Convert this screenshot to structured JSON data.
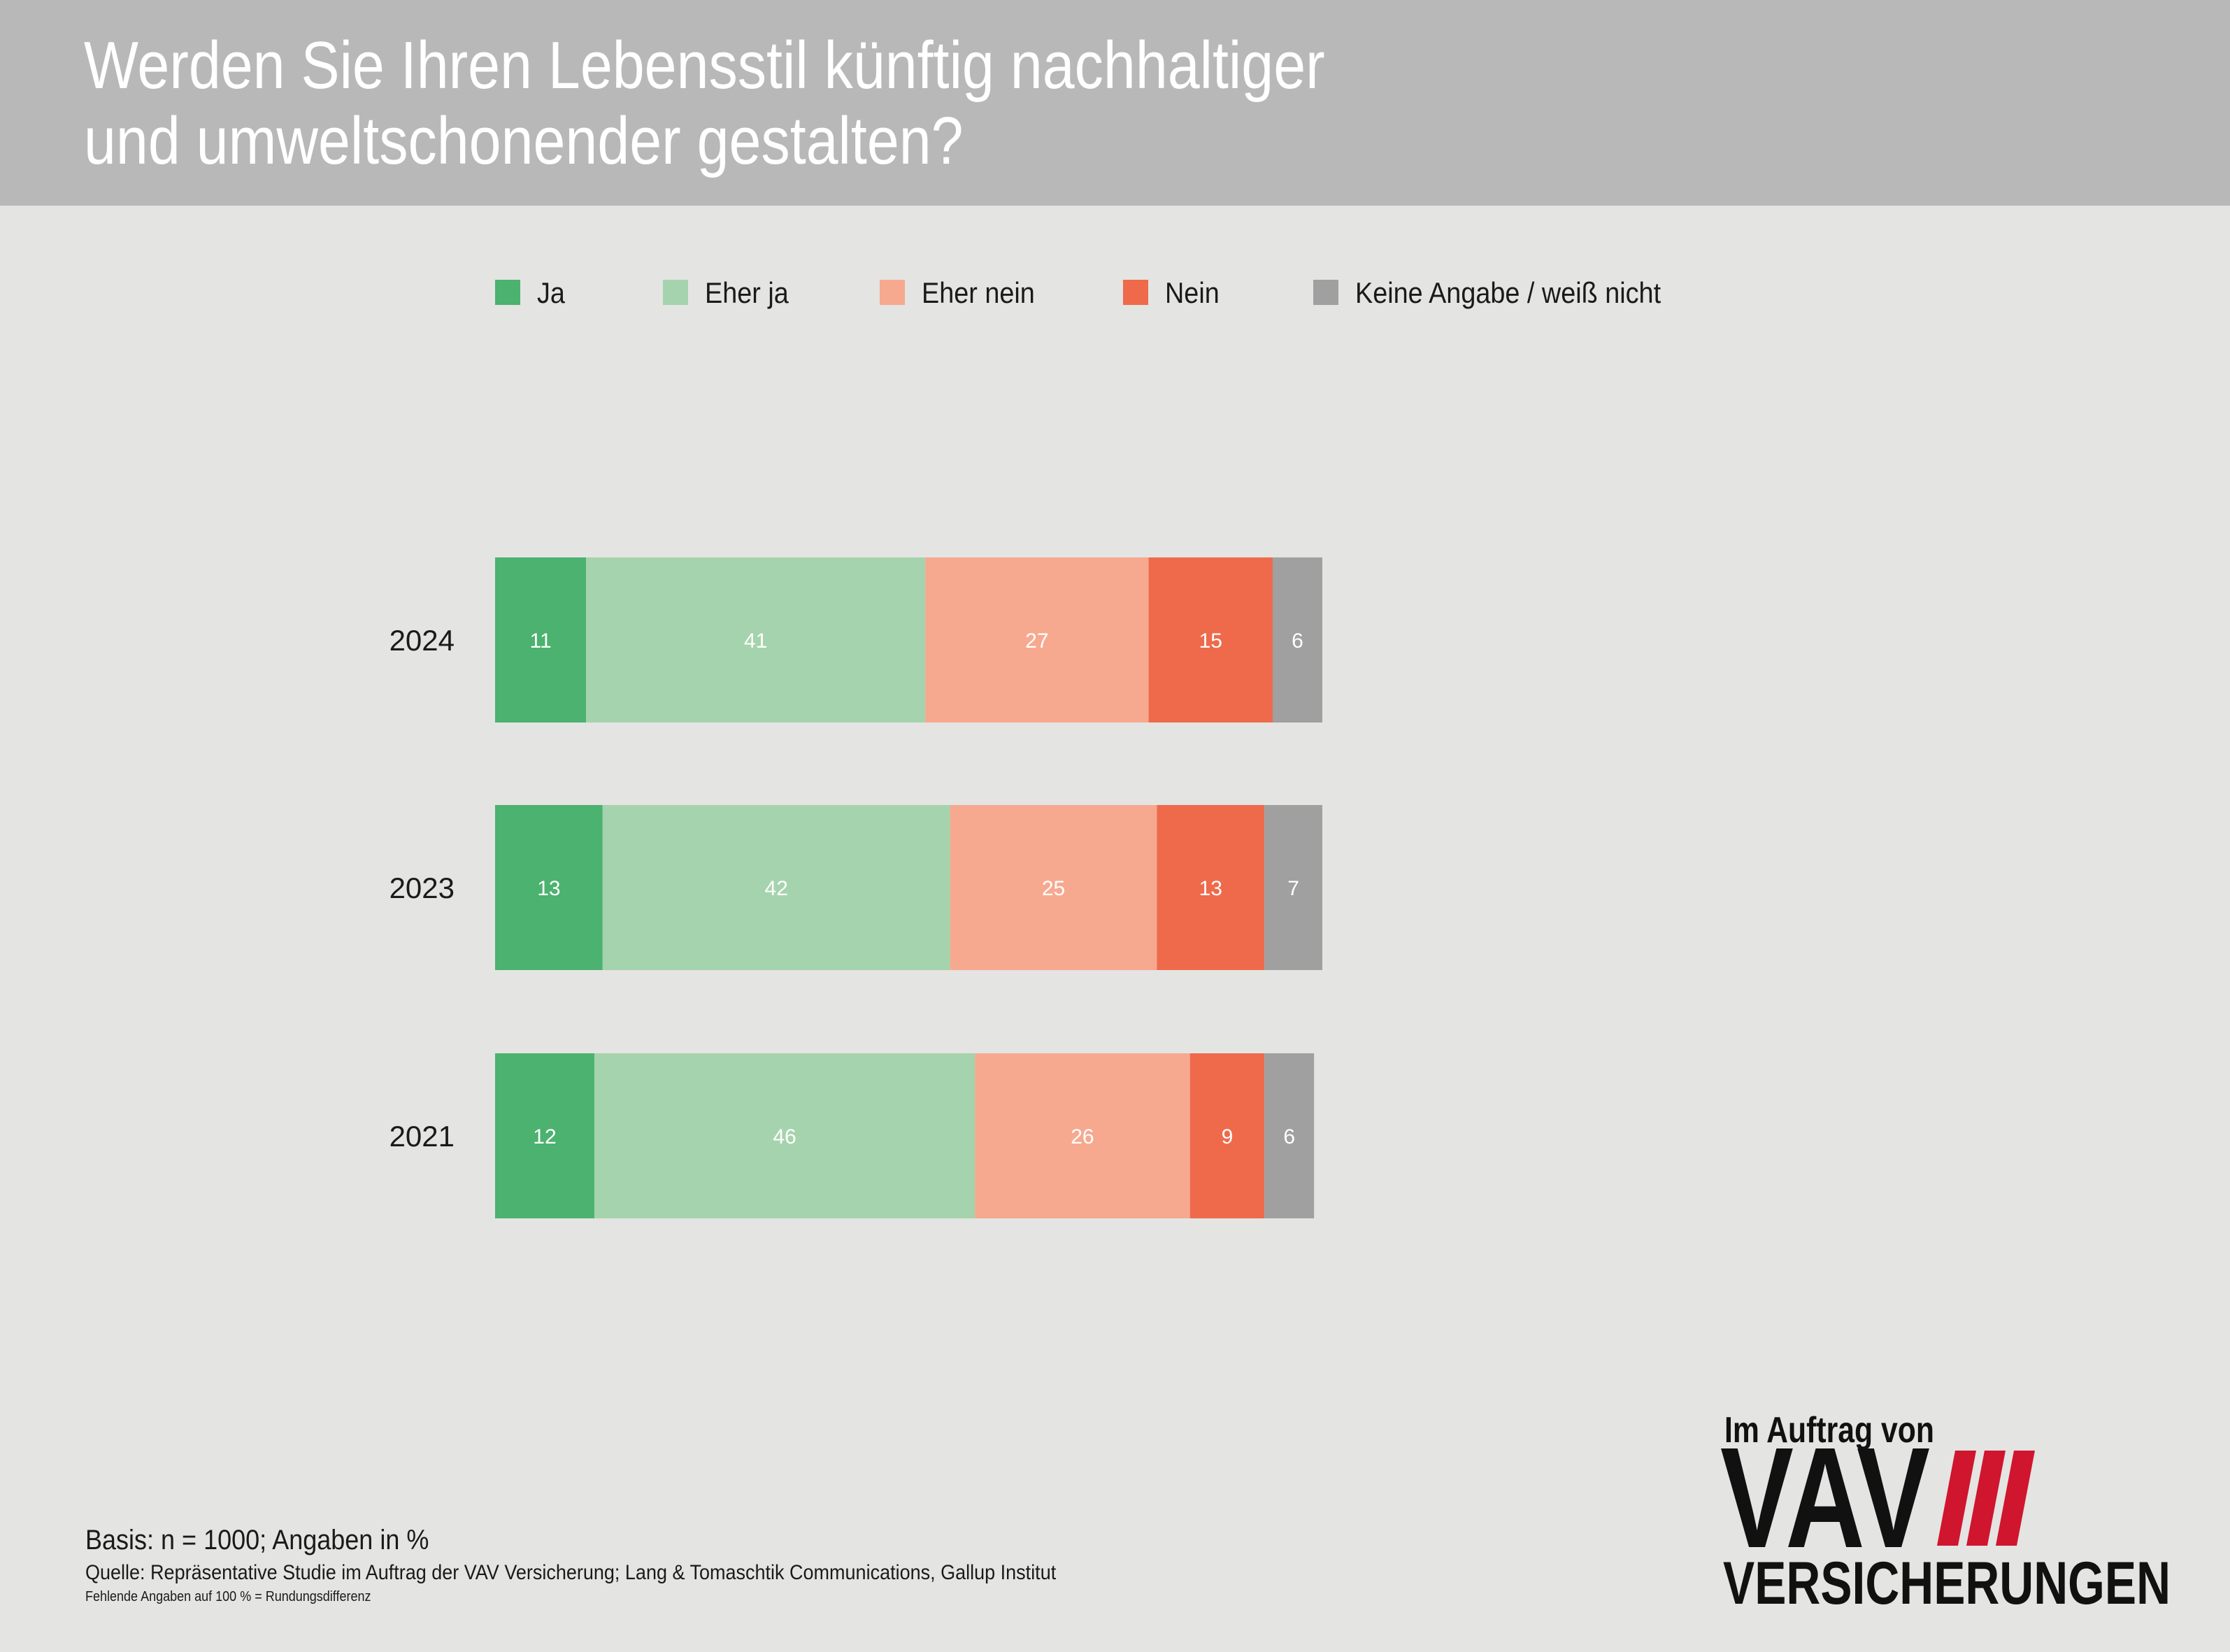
{
  "header": {
    "title_line1": "Werden Sie Ihren Lebensstil künftig nachhaltiger",
    "title_line2": "und umweltschonender gestalten?"
  },
  "legend": [
    {
      "label": "Ja",
      "color": "#4bb26f"
    },
    {
      "label": "Eher ja",
      "color": "#a5d3ad"
    },
    {
      "label": "Eher nein",
      "color": "#f6a98f"
    },
    {
      "label": "Nein",
      "color": "#ee6a4b"
    },
    {
      "label": "Keine Angabe / weiß nicht",
      "color": "#a0a0a0"
    }
  ],
  "chart_data": {
    "type": "bar",
    "orientation": "horizontal",
    "stacked": true,
    "categories": [
      "2024",
      "2023",
      "2021"
    ],
    "series": [
      {
        "name": "Ja",
        "values": [
          11,
          13,
          12
        ]
      },
      {
        "name": "Eher ja",
        "values": [
          41,
          42,
          46
        ]
      },
      {
        "name": "Eher nein",
        "values": [
          27,
          25,
          26
        ]
      },
      {
        "name": "Nein",
        "values": [
          15,
          13,
          9
        ]
      },
      {
        "name": "Keine Angabe / weiß nicht",
        "values": [
          6,
          7,
          6
        ]
      }
    ],
    "title": "Werden Sie Ihren Lebensstil künftig nachhaltiger und umweltschonender gestalten?",
    "xlabel": "",
    "ylabel": "",
    "unit": "%",
    "legend_position": "top",
    "grid": false
  },
  "footer": {
    "basis": "Basis: n = 1000; Angaben in %",
    "source": "Quelle: Repräsentative Studie im Auftrag der VAV Versicherung; Lang & Tomaschtik Communications, Gallup Institut",
    "note": "Fehlende Angaben auf 100 % = Rundungsdifferenz"
  },
  "logo": {
    "line1": "Im Auftrag von",
    "line2": "VAV",
    "line3": "VERSICHERUNGEN",
    "accent_color": "#d0152e"
  }
}
